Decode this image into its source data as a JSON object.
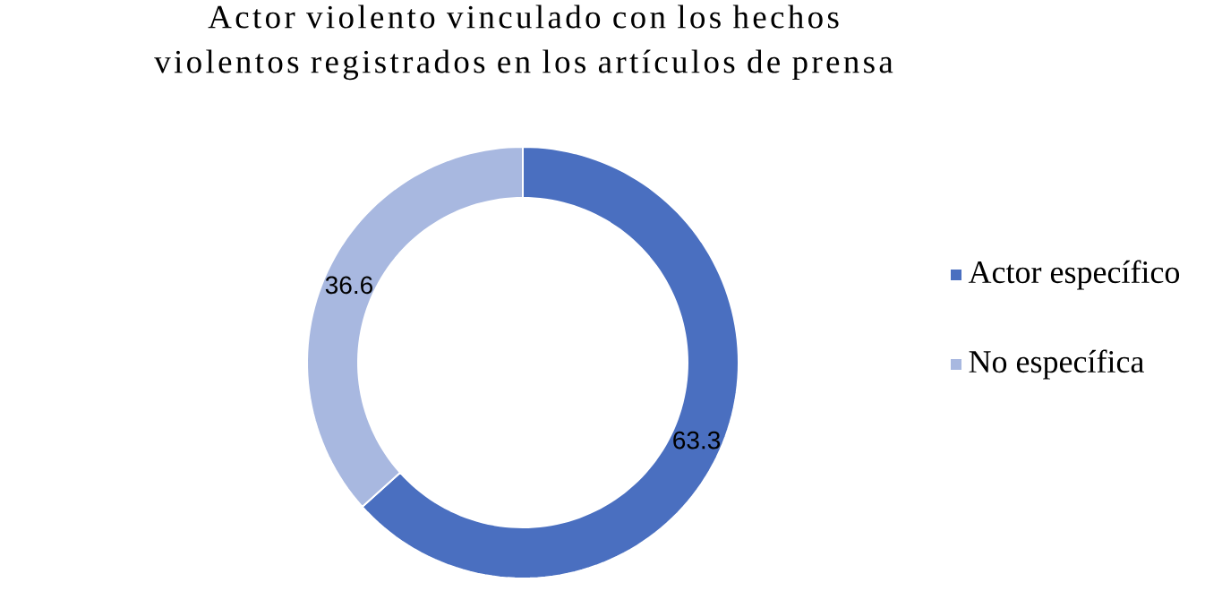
{
  "chart_data": {
    "type": "donut",
    "title": "Actor violento vinculado con los hechos violentos registrados en los artículos de prensa",
    "categories": [
      "Actor específico",
      "No específica"
    ],
    "values": [
      63.3,
      36.6
    ],
    "colors": [
      "#4a6fc0",
      "#a8b8e0"
    ],
    "data_labels": true,
    "legend": "right"
  }
}
